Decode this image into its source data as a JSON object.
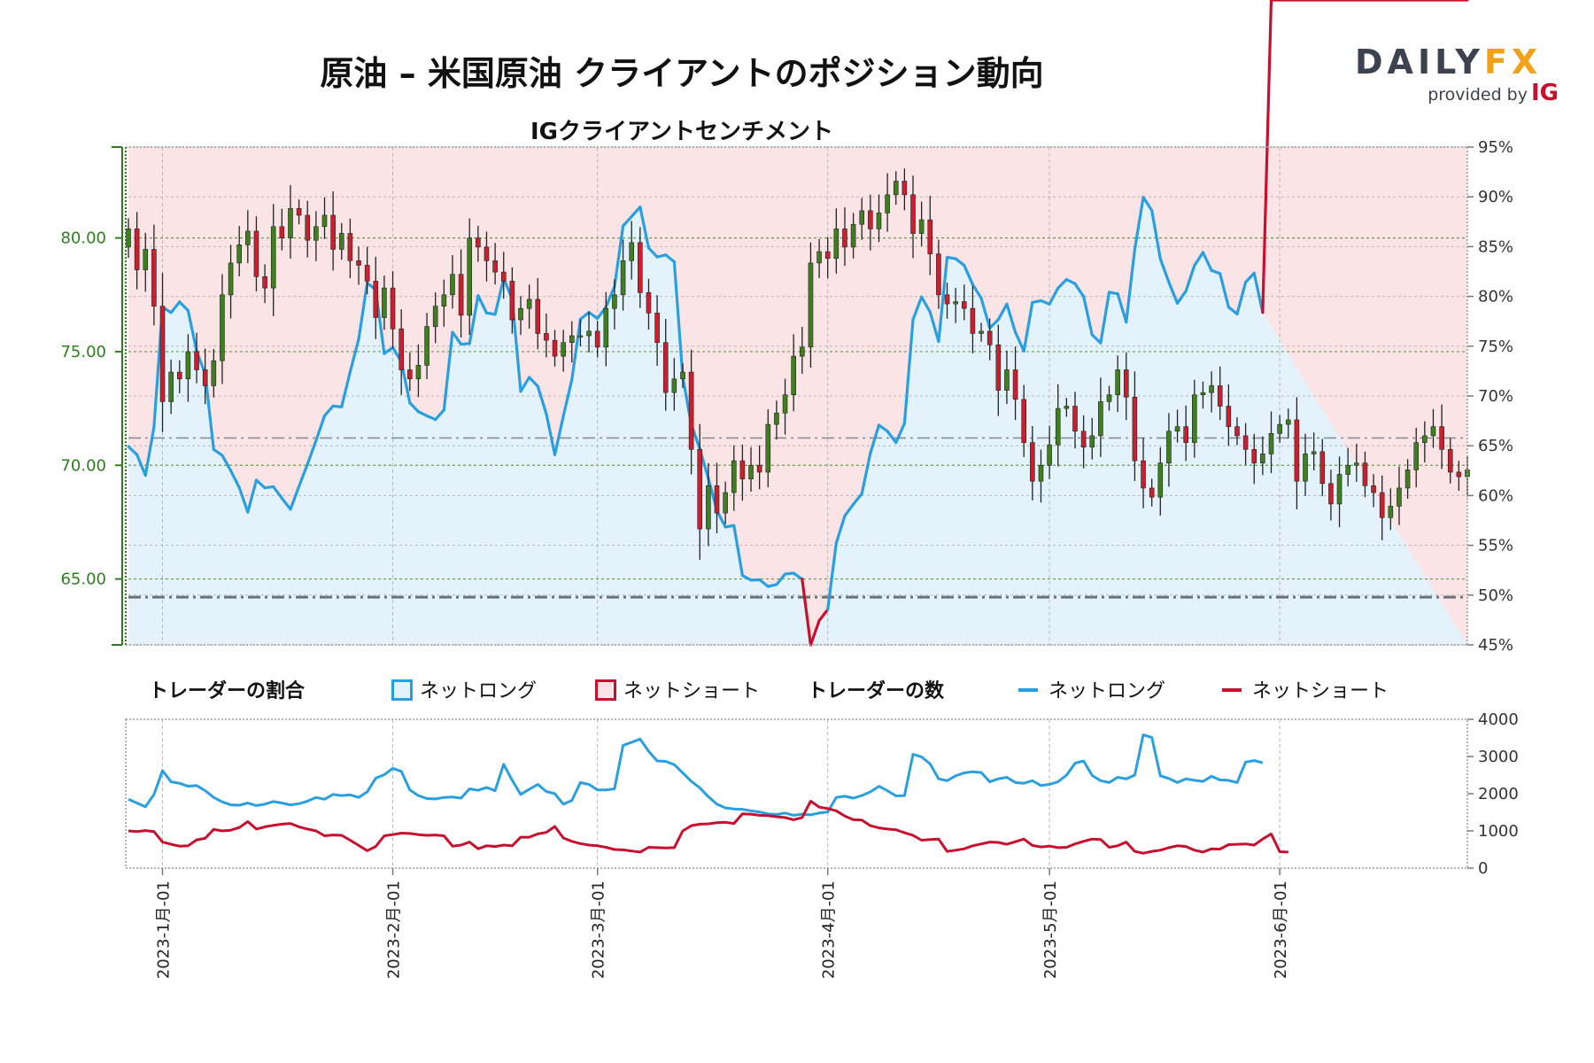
{
  "title": "原油 – 米国原油 クライアントのポジション動向",
  "subtitle": "IGクライアントセンチメント",
  "logo": {
    "brand_a": "DAILY",
    "brand_b": "FX",
    "provided": "provided by",
    "ig": "IG"
  },
  "legend": {
    "pct_title": "トレーダーの割合",
    "pct_long": "ネットロング",
    "pct_short": "ネットショート",
    "cnt_title": "トレーダーの数",
    "cnt_long": "ネットロング",
    "cnt_short": "ネットショート"
  },
  "colors": {
    "long": "#2a9fe0",
    "short": "#c8102e",
    "long_fill": "#e4f3fb",
    "short_fill": "#fbe4e6",
    "candle_up": "#3f7f1f",
    "candle_down": "#c8202e",
    "price_axis": "#2e7d1e"
  },
  "chart_data": [
    {
      "type": "candlestick",
      "price_ticks": [
        "65.00",
        "70.00",
        "75.00",
        "80.00"
      ],
      "price_tick_values": [
        65,
        70,
        75,
        80
      ],
      "price_ylim": [
        62.1,
        84.0
      ],
      "sentiment_ticks": [
        "45%",
        "50%",
        "55%",
        "60%",
        "65%",
        "70%",
        "75%",
        "80%",
        "85%",
        "90%",
        "95%"
      ],
      "sentiment_ylim": [
        45,
        95
      ],
      "reference_lines": [
        64.2,
        71.2
      ],
      "x_dates": [
        "2023-1月-01",
        "2023-2月-01",
        "2023-3月-01",
        "2023-4月-01",
        "2023-5月-01",
        "2023-6月-01"
      ],
      "price_close": [
        80.4,
        78.6,
        79.5,
        77.0,
        72.8,
        74.1,
        73.8,
        75.0,
        74.2,
        73.5,
        74.6,
        77.5,
        78.9,
        79.7,
        80.3,
        78.3,
        77.8,
        80.5,
        80.0,
        81.3,
        81.0,
        79.9,
        80.5,
        81.0,
        79.5,
        80.2,
        79.0,
        78.8,
        78.1,
        76.5,
        77.8,
        76.0,
        74.2,
        73.8,
        74.4,
        76.1,
        77.0,
        77.5,
        78.4,
        76.6,
        80.0,
        79.6,
        79.0,
        78.5,
        78.1,
        76.4,
        76.9,
        77.3,
        75.8,
        75.5,
        74.8,
        75.4,
        75.7,
        75.7,
        75.9,
        75.2,
        76.9,
        77.5,
        79.0,
        79.8,
        77.6,
        76.7,
        75.4,
        73.2,
        73.8,
        74.1,
        70.7,
        67.2,
        69.1,
        67.9,
        68.8,
        70.2,
        69.4,
        70.0,
        69.7,
        71.8,
        72.3,
        73.1,
        74.8,
        75.2,
        78.9,
        79.4,
        79.1,
        80.4,
        79.6,
        80.6,
        81.2,
        80.4,
        81.1,
        81.9,
        82.5,
        81.9,
        80.2,
        80.8,
        79.3,
        77.5,
        77.1,
        77.2,
        76.9,
        75.8,
        75.9,
        75.3,
        73.3,
        74.2,
        72.9,
        71.0,
        69.3,
        70.0,
        70.9,
        72.5,
        72.6,
        71.5,
        70.8,
        71.3,
        72.8,
        73.1,
        74.2,
        73.0,
        70.2,
        69.0,
        68.6,
        70.1,
        71.5,
        71.7,
        71.0,
        73.1,
        73.2,
        73.5,
        72.6,
        71.7,
        71.3,
        70.7,
        70.1,
        70.5,
        71.4,
        71.8,
        72.0,
        69.3,
        70.5,
        70.6,
        69.2,
        68.3,
        69.6,
        70.0,
        70.1,
        69.1,
        68.8,
        67.7,
        68.2,
        69.0,
        69.8,
        71.0,
        71.3,
        71.7,
        70.7,
        69.7,
        69.5,
        69.8
      ]
    },
    {
      "type": "line",
      "traders_ticks": [
        "0",
        "1000",
        "2000",
        "3000",
        "4000"
      ],
      "traders_ylim": [
        0,
        4000
      ],
      "series": [
        {
          "name": "ネットロング",
          "values": [
            1850,
            1750,
            1650,
            1980,
            2620,
            2320,
            2280,
            2200,
            2220,
            2080,
            1900,
            1780,
            1700,
            1690,
            1750,
            1680,
            1720,
            1790,
            1750,
            1700,
            1730,
            1800,
            1900,
            1850,
            1980,
            1950,
            1970,
            1900,
            2050,
            2420,
            2510,
            2680,
            2600,
            2100,
            1950,
            1870,
            1860,
            1900,
            1910,
            1880,
            2130,
            2090,
            2170,
            2080,
            2790,
            2360,
            1980,
            2120,
            2250,
            2060,
            2000,
            1720,
            1820,
            2300,
            2250,
            2100,
            2100,
            2130,
            3300,
            3380,
            3470,
            3140,
            2880,
            2870,
            2780,
            2560,
            2330,
            2160,
            1920,
            1720,
            1620,
            1590,
            1580,
            1540,
            1510,
            1460,
            1440,
            1480,
            1420,
            1450,
            1430,
            1480,
            1510,
            1900,
            1930,
            1880,
            1950,
            2050,
            2200,
            2080,
            1940,
            1950,
            3060,
            2990,
            2800,
            2400,
            2350,
            2480,
            2560,
            2590,
            2570,
            2320,
            2400,
            2440,
            2300,
            2280,
            2350,
            2220,
            2250,
            2320,
            2500,
            2820,
            2880,
            2490,
            2350,
            2300,
            2440,
            2400,
            2500,
            3580,
            3510,
            2480,
            2410,
            2300,
            2400,
            2360,
            2330,
            2470,
            2370,
            2360,
            2300,
            2850,
            2890,
            2830
          ]
        },
        {
          "name": "ネットショート",
          "values": [
            1000,
            980,
            1010,
            980,
            700,
            640,
            590,
            600,
            760,
            800,
            1040,
            1000,
            1020,
            1090,
            1250,
            1050,
            1110,
            1150,
            1180,
            1200,
            1110,
            1050,
            1000,
            870,
            890,
            880,
            750,
            610,
            470,
            580,
            870,
            900,
            940,
            930,
            900,
            880,
            890,
            870,
            590,
            620,
            700,
            520,
            600,
            580,
            620,
            600,
            830,
            830,
            920,
            960,
            1120,
            810,
            720,
            660,
            620,
            600,
            560,
            500,
            490,
            460,
            430,
            560,
            550,
            540,
            550,
            1000,
            1140,
            1180,
            1190,
            1220,
            1230,
            1200,
            1460,
            1450,
            1420,
            1410,
            1380,
            1360,
            1300,
            1360,
            1800,
            1640,
            1600,
            1540,
            1400,
            1300,
            1290,
            1140,
            1080,
            1050,
            1030,
            950,
            880,
            750,
            770,
            780,
            450,
            480,
            520,
            600,
            650,
            700,
            690,
            640,
            710,
            780,
            610,
            570,
            590,
            550,
            560,
            650,
            720,
            780,
            770,
            560,
            600,
            700,
            450,
            400,
            450,
            480,
            550,
            600,
            580,
            480,
            430,
            520,
            510,
            630,
            640,
            650,
            620,
            780,
            920,
            440,
            430
          ]
        }
      ]
    }
  ]
}
